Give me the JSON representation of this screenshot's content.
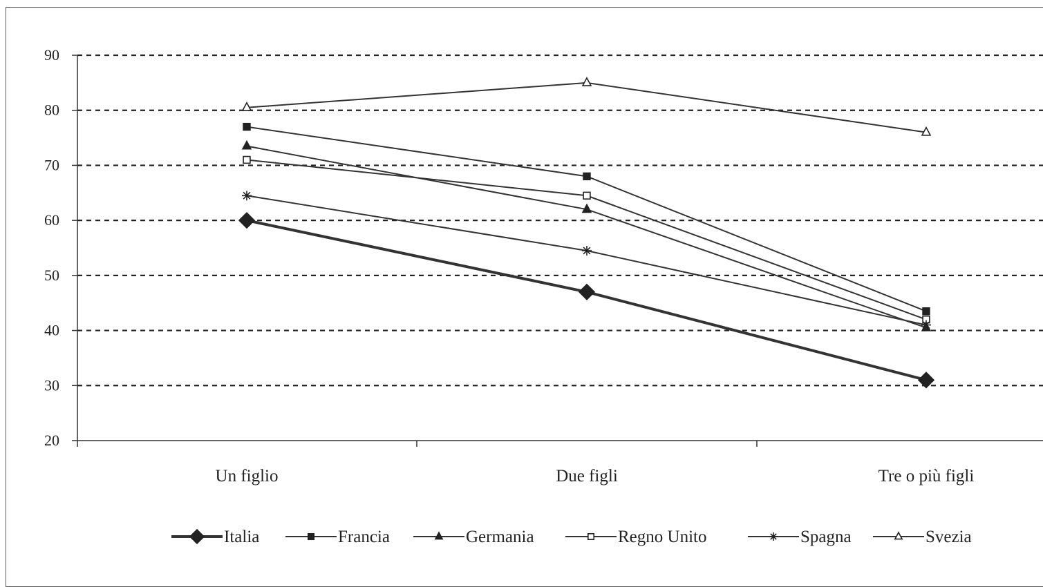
{
  "chart_data": {
    "type": "line",
    "categories": [
      "Un figlio",
      "Due figli",
      "Tre o più figli"
    ],
    "ylim": [
      20,
      90
    ],
    "yticks": [
      "20",
      "30",
      "40",
      "50",
      "60",
      "70",
      "80",
      "90"
    ],
    "grid": true,
    "legend_position": "bottom",
    "series": [
      {
        "name": "Italia",
        "marker": "diamond-filled",
        "values": [
          60,
          47,
          31
        ]
      },
      {
        "name": "Francia",
        "marker": "square-filled",
        "values": [
          77,
          68,
          43.5
        ]
      },
      {
        "name": "Germania",
        "marker": "triangle-filled",
        "values": [
          73.5,
          62,
          40.5
        ]
      },
      {
        "name": "Regno Unito",
        "marker": "square-open",
        "values": [
          71,
          64.5,
          42
        ]
      },
      {
        "name": "Spagna",
        "marker": "star",
        "values": [
          64.5,
          54.5,
          41
        ]
      },
      {
        "name": "Svezia",
        "marker": "triangle-open",
        "values": [
          80.5,
          85,
          76
        ]
      }
    ]
  }
}
